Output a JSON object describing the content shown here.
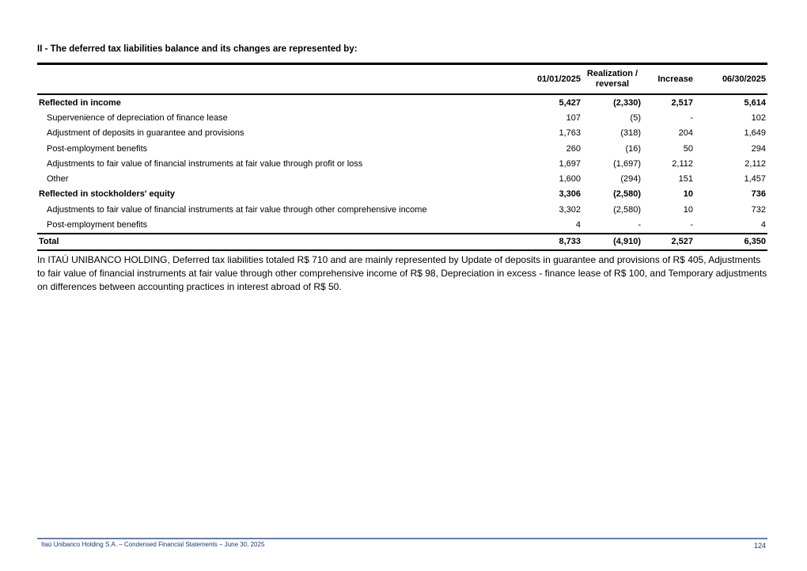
{
  "title": "II - The deferred tax liabilities balance and its changes are represented by:",
  "table": {
    "headers": [
      "01/01/2025",
      "Realization / reversal",
      "Increase",
      "06/30/2025"
    ],
    "rows": [
      {
        "label": "Reflected in income",
        "type": "bold",
        "values": [
          "5,427",
          "(2,330)",
          "2,517",
          "5,614"
        ]
      },
      {
        "label": "Supervenience of depreciation of finance lease",
        "type": "sub",
        "values": [
          "107",
          "(5)",
          "-",
          "102"
        ]
      },
      {
        "label": "Adjustment of deposits in guarantee and provisions",
        "type": "sub",
        "values": [
          "1,763",
          "(318)",
          "204",
          "1,649"
        ]
      },
      {
        "label": "Post-employment benefits",
        "type": "sub",
        "values": [
          "260",
          "(16)",
          "50",
          "294"
        ]
      },
      {
        "label": "Adjustments to fair value of financial instruments at fair value through profit or loss",
        "type": "sub",
        "values": [
          "1,697",
          "(1,697)",
          "2,112",
          "2,112"
        ]
      },
      {
        "label": "Other",
        "type": "sub",
        "values": [
          "1,600",
          "(294)",
          "151",
          "1,457"
        ]
      },
      {
        "label": "Reflected in stockholders' equity",
        "type": "bold",
        "values": [
          "3,306",
          "(2,580)",
          "10",
          "736"
        ]
      },
      {
        "label": "Adjustments to fair value of financial instruments at fair value through other comprehensive income",
        "type": "sub",
        "values": [
          "3,302",
          "(2,580)",
          "10",
          "732"
        ]
      },
      {
        "label": "Post-employment benefits",
        "type": "sub",
        "values": [
          "4",
          "-",
          "-",
          "4"
        ]
      },
      {
        "label": "Total",
        "type": "bold total",
        "values": [
          "8,733",
          "(4,910)",
          "2,527",
          "6,350"
        ]
      }
    ]
  },
  "paragraph": "In ITAÚ UNIBANCO HOLDING, Deferred tax liabilities totaled R$ 710 and are mainly represented by Update of deposits in guarantee and provisions of R$ 405, Adjustments to fair value of financial instruments at fair value through other comprehensive income of R$ 98, Depreciation in excess - finance lease of R$ 100, and Temporary adjustments on differences between accounting practices in interest abroad of R$ 50.",
  "footer": {
    "text": "Itaú Unibanco Holding S.A. – Condensed Financial Statements – June 30, 2025",
    "page": "124"
  }
}
